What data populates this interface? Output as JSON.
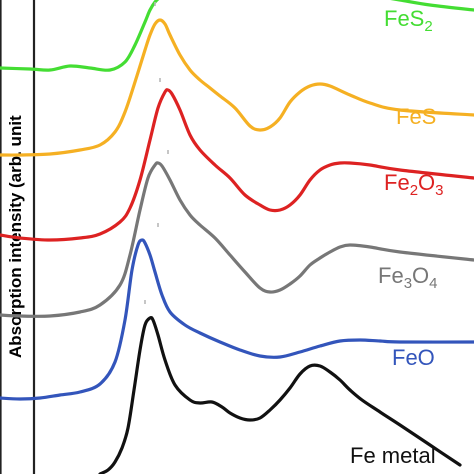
{
  "chart_data": {
    "type": "line",
    "title": "",
    "xlabel": "",
    "ylabel": "Absorption intensity (arb. unit",
    "grid": false,
    "legend": "inline labels at right end of each curve",
    "series": [
      {
        "name": "FeS2",
        "label_main": "FeS",
        "label_sub": "2",
        "color": "#44dd33",
        "peak_x": 155,
        "x": [
          0,
          30,
          50,
          70,
          90,
          110,
          125,
          135,
          145,
          150,
          155,
          162,
          170,
          180,
          200,
          220,
          240,
          250,
          260,
          270,
          280,
          290,
          300,
          310,
          320,
          340,
          370,
          400,
          430,
          474
        ],
        "y": [
          68,
          69,
          70,
          66,
          68,
          70,
          62,
          45,
          22,
          10,
          2,
          -5,
          -15,
          -20,
          -15,
          -10,
          -5,
          -3,
          -2,
          -2,
          -5,
          -10,
          -18,
          -22,
          -20,
          -10,
          -5,
          0,
          5,
          10
        ]
      },
      {
        "name": "FeS",
        "label_main": "FeS",
        "color": "#f5b023",
        "peak_x": 160,
        "x": [
          0,
          20,
          50,
          80,
          100,
          115,
          125,
          135,
          145,
          150,
          155,
          160,
          165,
          170,
          180,
          190,
          200,
          210,
          220,
          235,
          250,
          260,
          270,
          280,
          290,
          300,
          310,
          320,
          330,
          350,
          370,
          400,
          474
        ],
        "y": [
          155,
          155,
          154,
          150,
          145,
          132,
          112,
          82,
          50,
          35,
          24,
          20,
          24,
          35,
          55,
          70,
          80,
          88,
          96,
          108,
          126,
          130,
          127,
          118,
          102,
          92,
          86,
          84,
          86,
          95,
          103,
          110,
          115
        ]
      },
      {
        "name": "Fe2O3",
        "label_main": "Fe",
        "label_sub": "2",
        "label_main2": "O",
        "label_sub2": "3",
        "color": "#dd2222",
        "peak_x": 168,
        "x": [
          0,
          20,
          50,
          80,
          100,
          120,
          130,
          140,
          150,
          158,
          165,
          168,
          172,
          180,
          190,
          200,
          215,
          230,
          245,
          260,
          270,
          280,
          290,
          300,
          310,
          320,
          330,
          340,
          350,
          370,
          400,
          474
        ],
        "y": [
          235,
          238,
          240,
          238,
          234,
          222,
          208,
          180,
          140,
          108,
          92,
          90,
          94,
          110,
          135,
          150,
          165,
          178,
          195,
          205,
          210,
          210,
          205,
          195,
          180,
          170,
          165,
          163,
          163,
          165,
          170,
          178
        ]
      },
      {
        "name": "Fe3O4",
        "label_main": "Fe",
        "label_sub": "3",
        "label_main2": "O",
        "label_sub2": "4",
        "color": "#777777",
        "peak_x": 158,
        "x": [
          0,
          20,
          50,
          80,
          100,
          120,
          130,
          140,
          148,
          155,
          158,
          162,
          170,
          180,
          190,
          200,
          215,
          230,
          245,
          260,
          270,
          280,
          290,
          300,
          310,
          320,
          330,
          340,
          350,
          370,
          400,
          474
        ],
        "y": [
          315,
          316,
          316,
          312,
          305,
          285,
          255,
          210,
          178,
          165,
          163,
          166,
          180,
          200,
          215,
          225,
          238,
          255,
          272,
          288,
          292,
          290,
          284,
          276,
          265,
          258,
          252,
          247,
          245,
          247,
          252,
          260
        ]
      },
      {
        "name": "FeO",
        "label_main": "FeO",
        "color": "#3355bb",
        "peak_x": 145,
        "x": [
          0,
          20,
          40,
          60,
          80,
          100,
          115,
          125,
          132,
          138,
          142,
          145,
          150,
          155,
          162,
          170,
          185,
          200,
          220,
          240,
          260,
          280,
          300,
          320,
          340,
          360,
          380,
          400,
          474
        ],
        "y": [
          398,
          399,
          398,
          395,
          392,
          384,
          362,
          320,
          270,
          245,
          240,
          243,
          255,
          272,
          295,
          312,
          325,
          333,
          342,
          350,
          356,
          357,
          352,
          346,
          341,
          340,
          341,
          342,
          342
        ]
      },
      {
        "name": "Fe metal",
        "label_main": "Fe metal",
        "color": "#111111",
        "peak_x": 150,
        "x": [
          100,
          108,
          115,
          122,
          128,
          134,
          140,
          145,
          150,
          153,
          158,
          165,
          175,
          190,
          200,
          212,
          222,
          230,
          240,
          250,
          260,
          270,
          280,
          290,
          300,
          310,
          320,
          330,
          340,
          350,
          362,
          380,
          400,
          430,
          460
        ],
        "y": [
          474,
          470,
          462,
          448,
          428,
          390,
          350,
          325,
          318,
          320,
          335,
          360,
          385,
          400,
          403,
          402,
          407,
          413,
          418,
          420,
          418,
          410,
          400,
          388,
          374,
          366,
          366,
          372,
          380,
          390,
          400,
          412,
          425,
          445,
          465
        ]
      }
    ]
  }
}
